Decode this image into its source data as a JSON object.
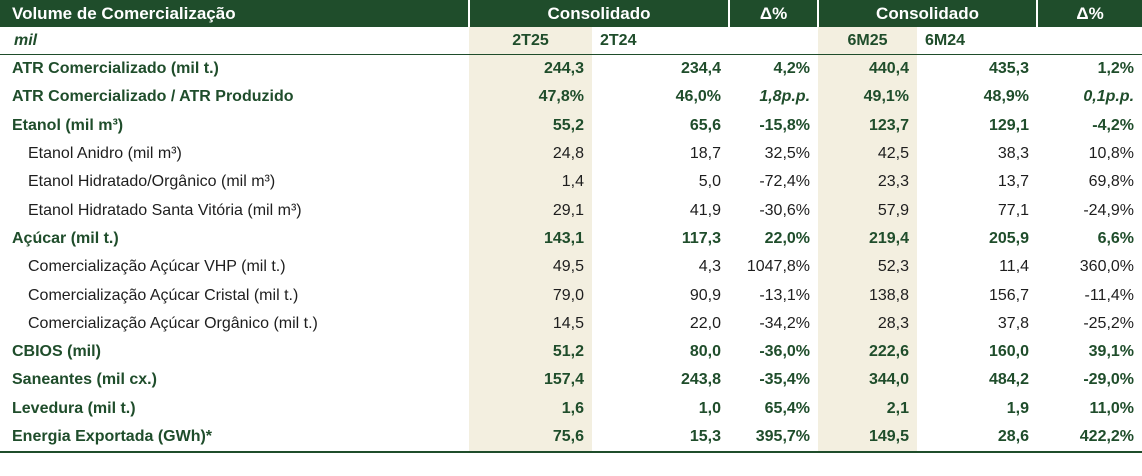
{
  "header": {
    "title": "Volume de Comercialização",
    "group_q": "Consolidado",
    "delta_q": "Δ%",
    "group_h": "Consolidado",
    "delta_h": "Δ%",
    "unit": "mil",
    "col_2t25": "2T25",
    "col_2t24": "2T24",
    "col_6m25": "6M25",
    "col_6m24": "6M24"
  },
  "rows": [
    {
      "label": "ATR Comercializado (mil t.)",
      "q25": "244,3",
      "q24": "234,4",
      "dq": "4,2%",
      "h25": "440,4",
      "h24": "435,3",
      "dh": "1,2%"
    },
    {
      "label": "ATR Comercializado / ATR Produzido",
      "q25": "47,8%",
      "q24": "46,0%",
      "dq": "1,8p.p.",
      "h25": "49,1%",
      "h24": "48,9%",
      "dh": "0,1p.p."
    },
    {
      "label": "Etanol (mil m³)",
      "q25": "55,2",
      "q24": "65,6",
      "dq": "-15,8%",
      "h25": "123,7",
      "h24": "129,1",
      "dh": "-4,2%"
    },
    {
      "label": "Etanol Anidro (mil m³)",
      "q25": "24,8",
      "q24": "18,7",
      "dq": "32,5%",
      "h25": "42,5",
      "h24": "38,3",
      "dh": "10,8%"
    },
    {
      "label": "Etanol Hidratado/Orgânico (mil m³)",
      "q25": "1,4",
      "q24": "5,0",
      "dq": "-72,4%",
      "h25": "23,3",
      "h24": "13,7",
      "dh": "69,8%"
    },
    {
      "label": "Etanol Hidratado Santa Vitória (mil m³)",
      "q25": "29,1",
      "q24": "41,9",
      "dq": "-30,6%",
      "h25": "57,9",
      "h24": "77,1",
      "dh": "-24,9%"
    },
    {
      "label": "Açúcar (mil t.)",
      "q25": "143,1",
      "q24": "117,3",
      "dq": "22,0%",
      "h25": "219,4",
      "h24": "205,9",
      "dh": "6,6%"
    },
    {
      "label": "Comercialização Açúcar VHP (mil t.)",
      "q25": "49,5",
      "q24": "4,3",
      "dq": "1047,8%",
      "h25": "52,3",
      "h24": "11,4",
      "dh": "360,0%"
    },
    {
      "label": "Comercialização Açúcar Cristal (mil t.)",
      "q25": "79,0",
      "q24": "90,9",
      "dq": "-13,1%",
      "h25": "138,8",
      "h24": "156,7",
      "dh": "-11,4%"
    },
    {
      "label": "Comercialização Açúcar Orgânico (mil t.)",
      "q25": "14,5",
      "q24": "22,0",
      "dq": "-34,2%",
      "h25": "28,3",
      "h24": "37,8",
      "dh": "-25,2%"
    },
    {
      "label": "CBIOS (mil)",
      "q25": "51,2",
      "q24": "80,0",
      "dq": "-36,0%",
      "h25": "222,6",
      "h24": "160,0",
      "dh": "39,1%"
    },
    {
      "label": "Saneantes (mil cx.)",
      "q25": "157,4",
      "q24": "243,8",
      "dq": "-35,4%",
      "h25": "344,0",
      "h24": "484,2",
      "dh": "-29,0%"
    },
    {
      "label": "Levedura (mil t.)",
      "q25": "1,6",
      "q24": "1,0",
      "dq": "65,4%",
      "h25": "2,1",
      "h24": "1,9",
      "dh": "11,0%"
    },
    {
      "label": "Energia Exportada (GWh)*",
      "q25": "75,6",
      "q24": "15,3",
      "dq": "395,7%",
      "h25": "149,5",
      "h24": "28,6",
      "dh": "422,2%"
    }
  ]
}
